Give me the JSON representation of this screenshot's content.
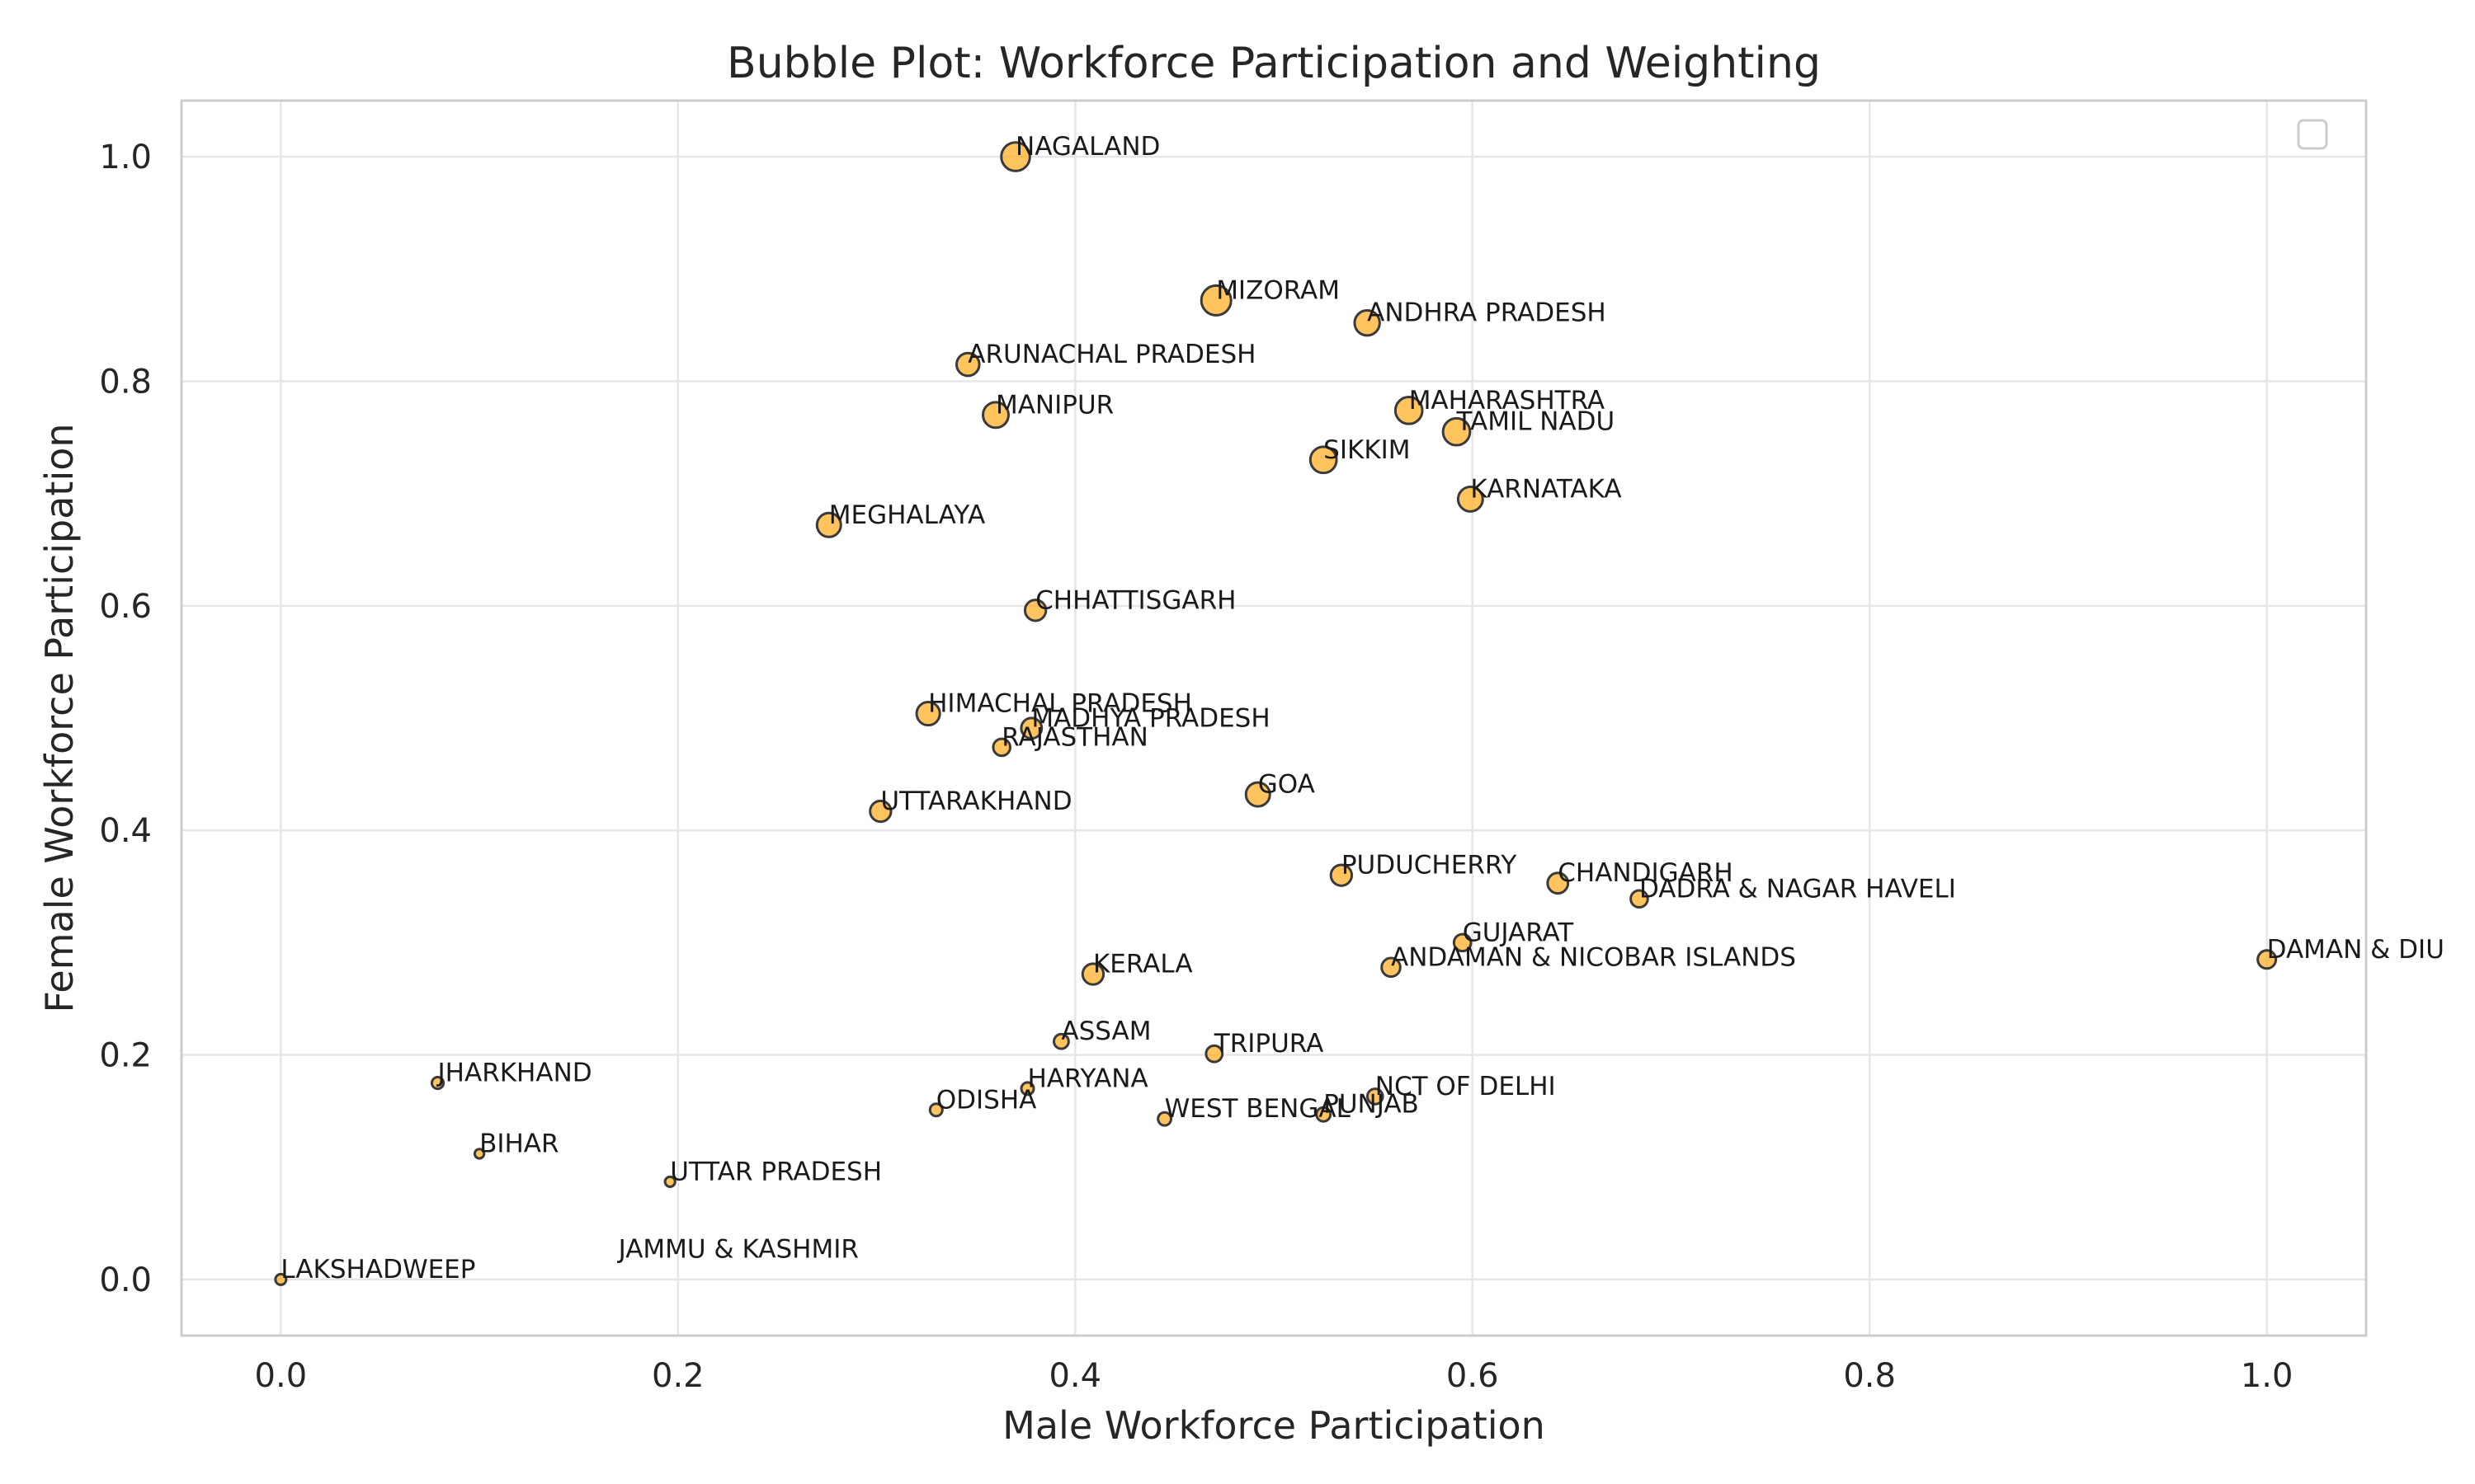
{
  "chart_data": {
    "type": "scatter",
    "title": "Bubble Plot: Workforce Participation and Weighting",
    "xlabel": "Male Workforce Participation",
    "ylabel": "Female Workforce Participation",
    "xlim": [
      -0.05,
      1.05
    ],
    "ylim": [
      -0.05,
      1.05
    ],
    "xticks": [
      "0.0",
      "0.2",
      "0.4",
      "0.6",
      "0.8",
      "1.0"
    ],
    "yticks": [
      "0.0",
      "0.2",
      "0.4",
      "0.6",
      "0.8",
      "1.0"
    ],
    "grid": true,
    "legend": "top-right (empty)",
    "marker_color": "#ffad1f",
    "marker_edge_color": "#3a3a3a",
    "points": [
      {
        "label": "NAGALAND",
        "x": 0.37,
        "y": 1.0,
        "weight": 0.95
      },
      {
        "label": "MIZORAM",
        "x": 0.471,
        "y": 0.872,
        "weight": 1.0
      },
      {
        "label": "ANDHRA PRADESH",
        "x": 0.547,
        "y": 0.852,
        "weight": 0.8
      },
      {
        "label": "ARUNACHAL PRADESH",
        "x": 0.346,
        "y": 0.815,
        "weight": 0.7
      },
      {
        "label": "MANIPUR",
        "x": 0.36,
        "y": 0.77,
        "weight": 0.82
      },
      {
        "label": "MAHARASHTRA",
        "x": 0.568,
        "y": 0.774,
        "weight": 0.88
      },
      {
        "label": "TAMIL NADU",
        "x": 0.592,
        "y": 0.755,
        "weight": 0.88
      },
      {
        "label": "SIKKIM",
        "x": 0.525,
        "y": 0.73,
        "weight": 0.85
      },
      {
        "label": "KARNATAKA",
        "x": 0.599,
        "y": 0.695,
        "weight": 0.78
      },
      {
        "label": "MEGHALAYA",
        "x": 0.276,
        "y": 0.672,
        "weight": 0.75
      },
      {
        "label": "CHHATTISGARH",
        "x": 0.38,
        "y": 0.596,
        "weight": 0.62
      },
      {
        "label": "HIMACHAL PRADESH",
        "x": 0.326,
        "y": 0.504,
        "weight": 0.72
      },
      {
        "label": "MADHYA PRADESH",
        "x": 0.378,
        "y": 0.491,
        "weight": 0.6
      },
      {
        "label": "RAJASTHAN",
        "x": 0.363,
        "y": 0.474,
        "weight": 0.45
      },
      {
        "label": "GOA",
        "x": 0.492,
        "y": 0.432,
        "weight": 0.75
      },
      {
        "label": "UTTARAKHAND",
        "x": 0.302,
        "y": 0.417,
        "weight": 0.62
      },
      {
        "label": "PUDUCHERRY",
        "x": 0.534,
        "y": 0.36,
        "weight": 0.62
      },
      {
        "label": "CHANDIGARH",
        "x": 0.643,
        "y": 0.353,
        "weight": 0.6
      },
      {
        "label": "DADRA & NAGAR HAVELI",
        "x": 0.684,
        "y": 0.339,
        "weight": 0.45
      },
      {
        "label": "GUJARAT",
        "x": 0.595,
        "y": 0.3,
        "weight": 0.45
      },
      {
        "label": "DAMAN & DIU",
        "x": 1.0,
        "y": 0.285,
        "weight": 0.5
      },
      {
        "label": "ANDAMAN & NICOBAR ISLANDS",
        "x": 0.559,
        "y": 0.278,
        "weight": 0.52
      },
      {
        "label": "KERALA",
        "x": 0.409,
        "y": 0.272,
        "weight": 0.62
      },
      {
        "label": "ASSAM",
        "x": 0.393,
        "y": 0.212,
        "weight": 0.35
      },
      {
        "label": "TRIPURA",
        "x": 0.47,
        "y": 0.201,
        "weight": 0.42
      },
      {
        "label": "JHARKHAND",
        "x": 0.079,
        "y": 0.175,
        "weight": 0.22
      },
      {
        "label": "HARYANA",
        "x": 0.376,
        "y": 0.17,
        "weight": 0.25
      },
      {
        "label": "NCT OF DELHI",
        "x": 0.551,
        "y": 0.163,
        "weight": 0.38
      },
      {
        "label": "ODISHA",
        "x": 0.33,
        "y": 0.151,
        "weight": 0.25
      },
      {
        "label": "PUNJAB",
        "x": 0.525,
        "y": 0.147,
        "weight": 0.32
      },
      {
        "label": "WEST BENGAL",
        "x": 0.445,
        "y": 0.143,
        "weight": 0.28
      },
      {
        "label": "BIHAR",
        "x": 0.1,
        "y": 0.112,
        "weight": 0.12
      },
      {
        "label": "UTTAR PRADESH",
        "x": 0.196,
        "y": 0.087,
        "weight": 0.15
      },
      {
        "label": "JAMMU & KASHMIR",
        "x": 0.17,
        "y": 0.018,
        "weight": 0.0
      },
      {
        "label": "LAKSHADWEEP",
        "x": 0.0,
        "y": 0.0,
        "weight": 0.18
      }
    ]
  }
}
